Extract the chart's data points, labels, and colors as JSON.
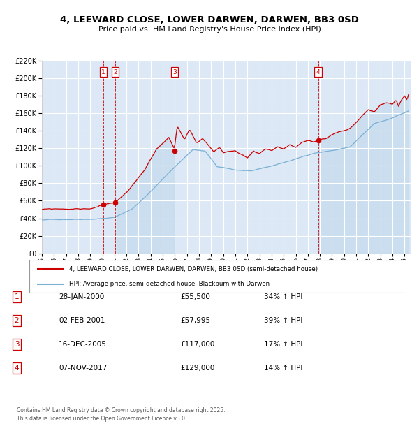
{
  "title": "4, LEEWARD CLOSE, LOWER DARWEN, DARWEN, BB3 0SD",
  "subtitle": "Price paid vs. HM Land Registry's House Price Index (HPI)",
  "legend_line1": "4, LEEWARD CLOSE, LOWER DARWEN, DARWEN, BB3 0SD (semi-detached house)",
  "legend_line2": "HPI: Average price, semi-detached house, Blackburn with Darwen",
  "footer1": "Contains HM Land Registry data © Crown copyright and database right 2025.",
  "footer2": "This data is licensed under the Open Government Licence v3.0.",
  "transactions": [
    {
      "num": 1,
      "date": "28-JAN-2000",
      "price": "£55,500",
      "hpi": "34% ↑ HPI",
      "year": 2000.07,
      "price_val": 55500
    },
    {
      "num": 2,
      "date": "02-FEB-2001",
      "price": "£57,995",
      "hpi": "39% ↑ HPI",
      "year": 2001.09,
      "price_val": 57995
    },
    {
      "num": 3,
      "date": "16-DEC-2005",
      "price": "£117,000",
      "hpi": "17% ↑ HPI",
      "year": 2005.96,
      "price_val": 117000
    },
    {
      "num": 4,
      "date": "07-NOV-2017",
      "price": "£129,000",
      "hpi": "14% ↑ HPI",
      "year": 2017.85,
      "price_val": 129000
    }
  ],
  "red_line_color": "#cc0000",
  "blue_line_color": "#7ab0d4",
  "plot_bg_color": "#dce8f5",
  "grid_color": "#ffffff",
  "ylim": [
    0,
    220000
  ],
  "xlim_start": 1995.0,
  "xlim_end": 2025.5
}
